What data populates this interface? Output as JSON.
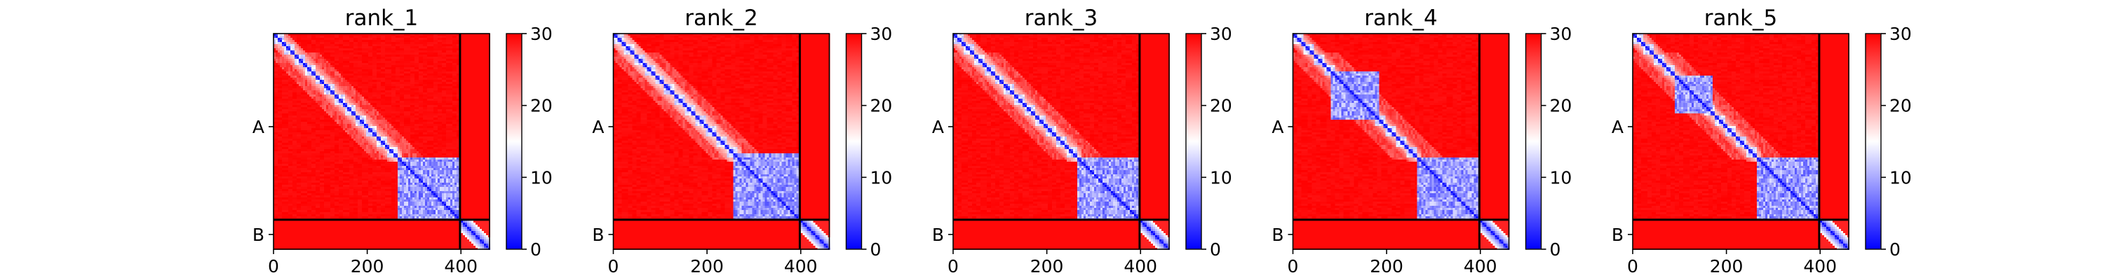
{
  "figure": {
    "kind": "Predicted aligned error heatmaps (5 panels)",
    "cmap": [
      "#0000ff",
      "#ffffff",
      "#ff0000"
    ]
  },
  "chart_data": [
    {
      "type": "heatmap",
      "title": "rank_1",
      "x_ticks": [
        "0",
        "200",
        "400"
      ],
      "x_tick_values": [
        0,
        200,
        400
      ],
      "y_ticks": [
        "A",
        "B"
      ],
      "chains": [
        {
          "name": "A",
          "start": 0,
          "end": 398
        },
        {
          "name": "B",
          "start": 398,
          "end": 461
        }
      ],
      "xlim": [
        0,
        461
      ],
      "ylim": [
        0,
        461
      ],
      "colorbar": {
        "min": 0,
        "max": 30,
        "ticks": [
          "0",
          "10",
          "20",
          "30"
        ],
        "tick_values": [
          0,
          10,
          20,
          30
        ]
      },
      "low_error_blocks": [
        {
          "from": 265,
          "to": 398
        }
      ],
      "diag_shading": 0.8
    },
    {
      "type": "heatmap",
      "title": "rank_2",
      "x_ticks": [
        "0",
        "200",
        "400"
      ],
      "x_tick_values": [
        0,
        200,
        400
      ],
      "y_ticks": [
        "A",
        "B"
      ],
      "chains": [
        {
          "name": "A",
          "start": 0,
          "end": 398
        },
        {
          "name": "B",
          "start": 398,
          "end": 461
        }
      ],
      "xlim": [
        0,
        461
      ],
      "ylim": [
        0,
        461
      ],
      "colorbar": {
        "min": 0,
        "max": 30,
        "ticks": [
          "0",
          "10",
          "20",
          "30"
        ],
        "tick_values": [
          0,
          10,
          20,
          30
        ]
      },
      "low_error_blocks": [
        {
          "from": 258,
          "to": 398
        }
      ],
      "diag_shading": 0.6
    },
    {
      "type": "heatmap",
      "title": "rank_3",
      "x_ticks": [
        "0",
        "200",
        "400"
      ],
      "x_tick_values": [
        0,
        200,
        400
      ],
      "y_ticks": [
        "A",
        "B"
      ],
      "chains": [
        {
          "name": "A",
          "start": 0,
          "end": 398
        },
        {
          "name": "B",
          "start": 398,
          "end": 461
        }
      ],
      "xlim": [
        0,
        461
      ],
      "ylim": [
        0,
        461
      ],
      "colorbar": {
        "min": 0,
        "max": 30,
        "ticks": [
          "0",
          "10",
          "20",
          "30"
        ],
        "tick_values": [
          0,
          10,
          20,
          30
        ]
      },
      "low_error_blocks": [
        {
          "from": 265,
          "to": 398
        }
      ],
      "diag_shading": 0.75
    },
    {
      "type": "heatmap",
      "title": "rank_4",
      "x_ticks": [
        "0",
        "200",
        "400"
      ],
      "x_tick_values": [
        0,
        200,
        400
      ],
      "y_ticks": [
        "A",
        "B"
      ],
      "chains": [
        {
          "name": "A",
          "start": 0,
          "end": 398
        },
        {
          "name": "B",
          "start": 398,
          "end": 461
        }
      ],
      "xlim": [
        0,
        461
      ],
      "ylim": [
        0,
        461
      ],
      "colorbar": {
        "min": 0,
        "max": 30,
        "ticks": [
          "0",
          "10",
          "20",
          "30"
        ],
        "tick_values": [
          0,
          10,
          20,
          30
        ]
      },
      "low_error_blocks": [
        {
          "from": 265,
          "to": 398
        },
        {
          "from": 80,
          "to": 185
        }
      ],
      "diag_shading": 1.0
    },
    {
      "type": "heatmap",
      "title": "rank_5",
      "x_ticks": [
        "0",
        "200",
        "400"
      ],
      "x_tick_values": [
        0,
        200,
        400
      ],
      "y_ticks": [
        "A",
        "B"
      ],
      "chains": [
        {
          "name": "A",
          "start": 0,
          "end": 398
        },
        {
          "name": "B",
          "start": 398,
          "end": 461
        }
      ],
      "xlim": [
        0,
        461
      ],
      "ylim": [
        0,
        461
      ],
      "colorbar": {
        "min": 0,
        "max": 30,
        "ticks": [
          "0",
          "10",
          "20",
          "30"
        ],
        "tick_values": [
          0,
          10,
          20,
          30
        ]
      },
      "low_error_blocks": [
        {
          "from": 265,
          "to": 398
        },
        {
          "from": 90,
          "to": 170
        }
      ],
      "diag_shading": 0.9
    }
  ]
}
